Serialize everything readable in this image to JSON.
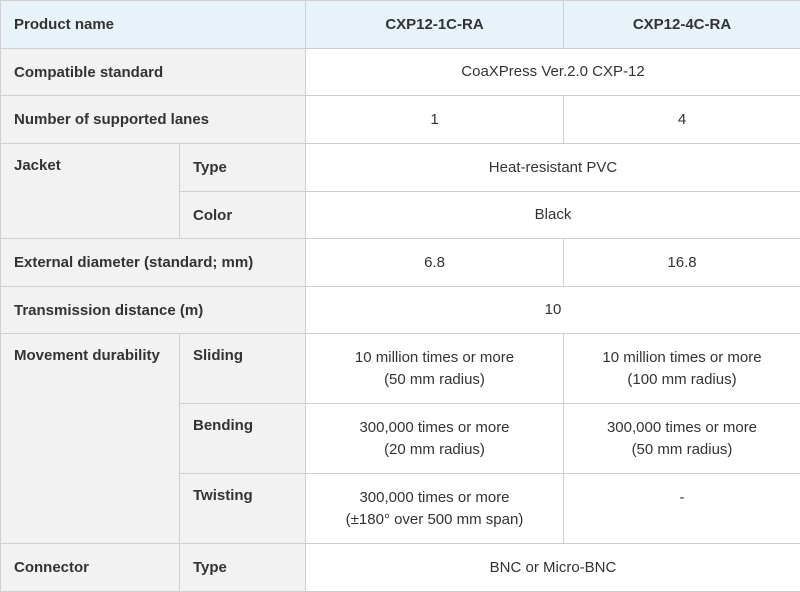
{
  "header": {
    "product_name_label": "Product name",
    "models": [
      "CXP12-1C-RA",
      "CXP12-4C-RA"
    ]
  },
  "rows": {
    "compatible_standard": {
      "label": "Compatible standard",
      "value": "CoaXPress Ver.2.0 CXP-12"
    },
    "lanes": {
      "label": "Number of supported lanes",
      "values": [
        "1",
        "4"
      ]
    },
    "jacket": {
      "label": "Jacket",
      "type": {
        "label": "Type",
        "value": "Heat-resistant PVC"
      },
      "color": {
        "label": "Color",
        "value": "Black"
      }
    },
    "external_diameter": {
      "label": "External diameter (standard; mm)",
      "values": [
        "6.8",
        "16.8"
      ]
    },
    "transmission_distance": {
      "label": "Transmission distance (m)",
      "value": "10"
    },
    "movement_durability": {
      "label": "Movement durability",
      "sliding": {
        "label": "Sliding",
        "model1": [
          "10 million times or more",
          "(50 mm radius)"
        ],
        "model2": [
          "10 million times or more",
          "(100 mm radius)"
        ]
      },
      "bending": {
        "label": "Bending",
        "model1": [
          "300,000 times or more",
          "(20 mm radius)"
        ],
        "model2": [
          "300,000 times or more",
          "(50 mm radius)"
        ]
      },
      "twisting": {
        "label": "Twisting",
        "model1": [
          "300,000 times or more",
          "(±180° over 500 mm span)"
        ],
        "model2": [
          "-"
        ]
      }
    },
    "connector": {
      "label": "Connector",
      "type": {
        "label": "Type",
        "value": "BNC or Micro-BNC"
      }
    }
  }
}
